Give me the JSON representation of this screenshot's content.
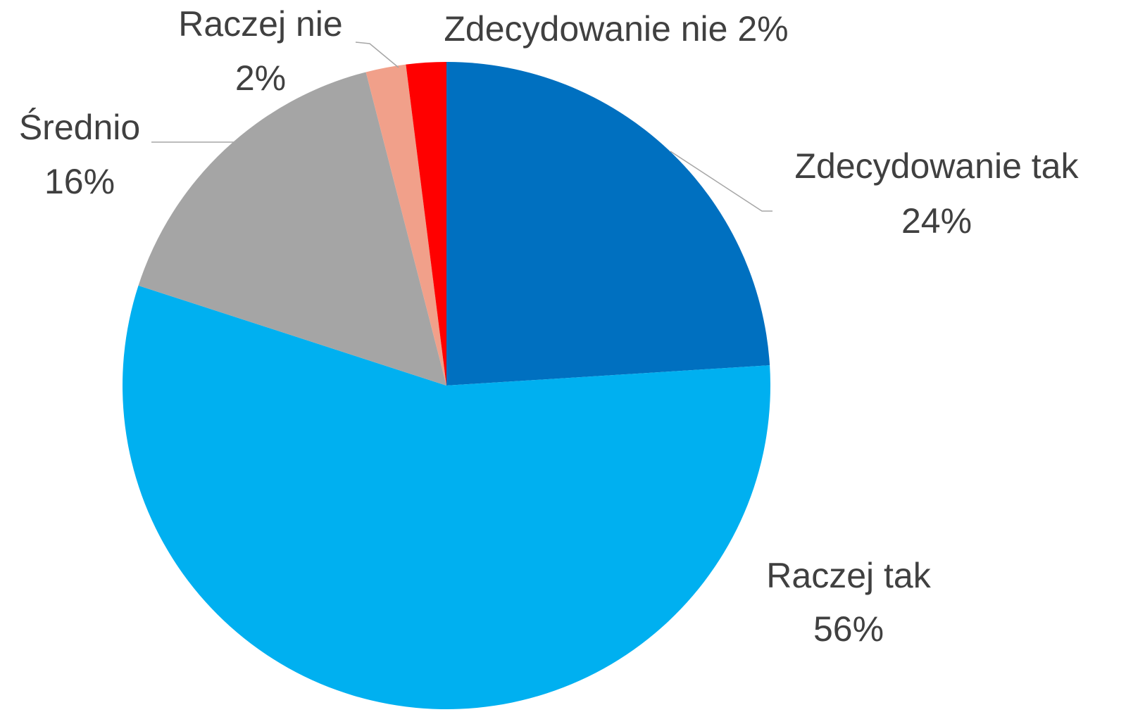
{
  "chart_data": {
    "type": "pie",
    "categories": [
      "Zdecydowanie tak",
      "Raczej tak",
      "Średnio",
      "Raczej nie",
      "Zdecydowanie nie"
    ],
    "values": [
      24,
      56,
      16,
      2,
      2
    ],
    "value_labels": [
      "24%",
      "56%",
      "16%",
      "2%",
      "2%"
    ],
    "colors": [
      "#0070c0",
      "#00b0f0",
      "#a5a5a5",
      "#f1a08a",
      "#ff0000"
    ]
  }
}
